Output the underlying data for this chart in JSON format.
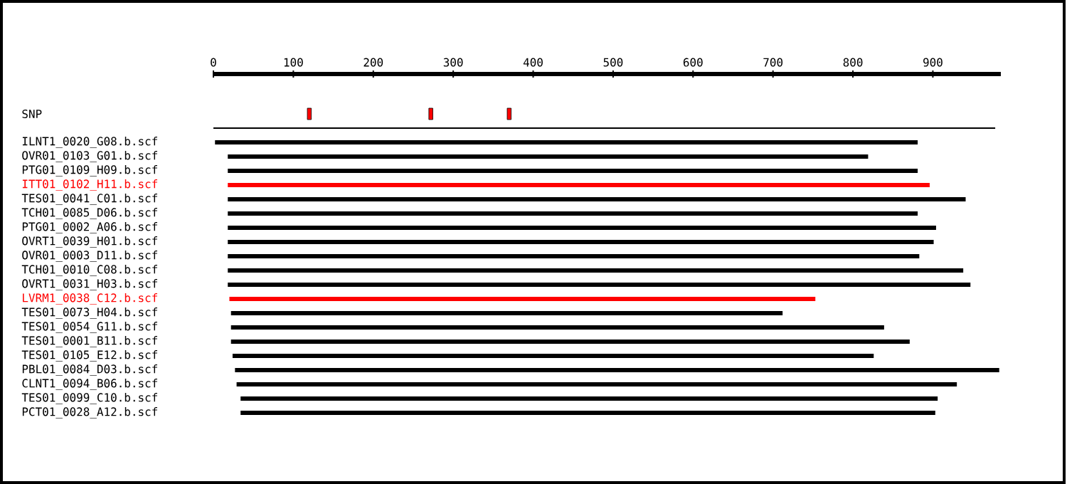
{
  "chart_data": {
    "type": "bar",
    "orientation": "horizontal",
    "xlim": [
      0,
      985
    ],
    "xticks": [
      0,
      100,
      200,
      300,
      400,
      500,
      600,
      700,
      800,
      900
    ],
    "categories": [
      "SNP",
      null,
      "ILNT1_0020_G08.b.scf",
      "OVR01_0103_G01.b.scf",
      "PTG01_0109_H09.b.scf",
      "ITT01_0102_H11.b.scf",
      "TES01_0041_C01.b.scf",
      "TCH01_0085_D06.b.scf",
      "PTG01_0002_A06.b.scf",
      "OVRT1_0039_H01.b.scf",
      "OVR01_0003_D11.b.scf",
      "TCH01_0010_C08.b.scf",
      "OVRT1_0031_H03.b.scf",
      "LVRM1_0038_C12.b.scf",
      "TES01_0073_H04.b.scf",
      "TES01_0054_G11.b.scf",
      "TES01_0001_B11.b.scf",
      "TES01_0105_E12.b.scf",
      "PBL01_0084_D03.b.scf",
      "CLNT1_0094_B06.b.scf",
      "TES01_0099_C10.b.scf",
      "PCT01_0028_A12.b.scf"
    ],
    "series": [
      {
        "base": [
          null,
          0,
          2,
          18,
          18,
          18,
          18,
          18,
          18,
          18,
          18,
          18,
          18,
          20,
          22,
          22,
          22,
          24,
          27,
          29,
          34,
          34
        ],
        "values": [
          null,
          978,
          879,
          801,
          863,
          878,
          923,
          863,
          886,
          883,
          865,
          920,
          929,
          733,
          690,
          817,
          849,
          802,
          956,
          901,
          872,
          869
        ],
        "colors": [
          null,
          "#000000",
          "#000000",
          "#000000",
          "#000000",
          "#ff0000",
          "#000000",
          "#000000",
          "#000000",
          "#000000",
          "#000000",
          "#000000",
          "#000000",
          "#ff0000",
          "#000000",
          "#000000",
          "#000000",
          "#000000",
          "#000000",
          "#000000",
          "#000000",
          "#000000"
        ]
      },
      {
        "type": "scatter",
        "color": "#ff0000",
        "x": [
          "SNP",
          "SNP",
          "SNP"
        ],
        "values": [
          120,
          272,
          370
        ]
      }
    ]
  }
}
